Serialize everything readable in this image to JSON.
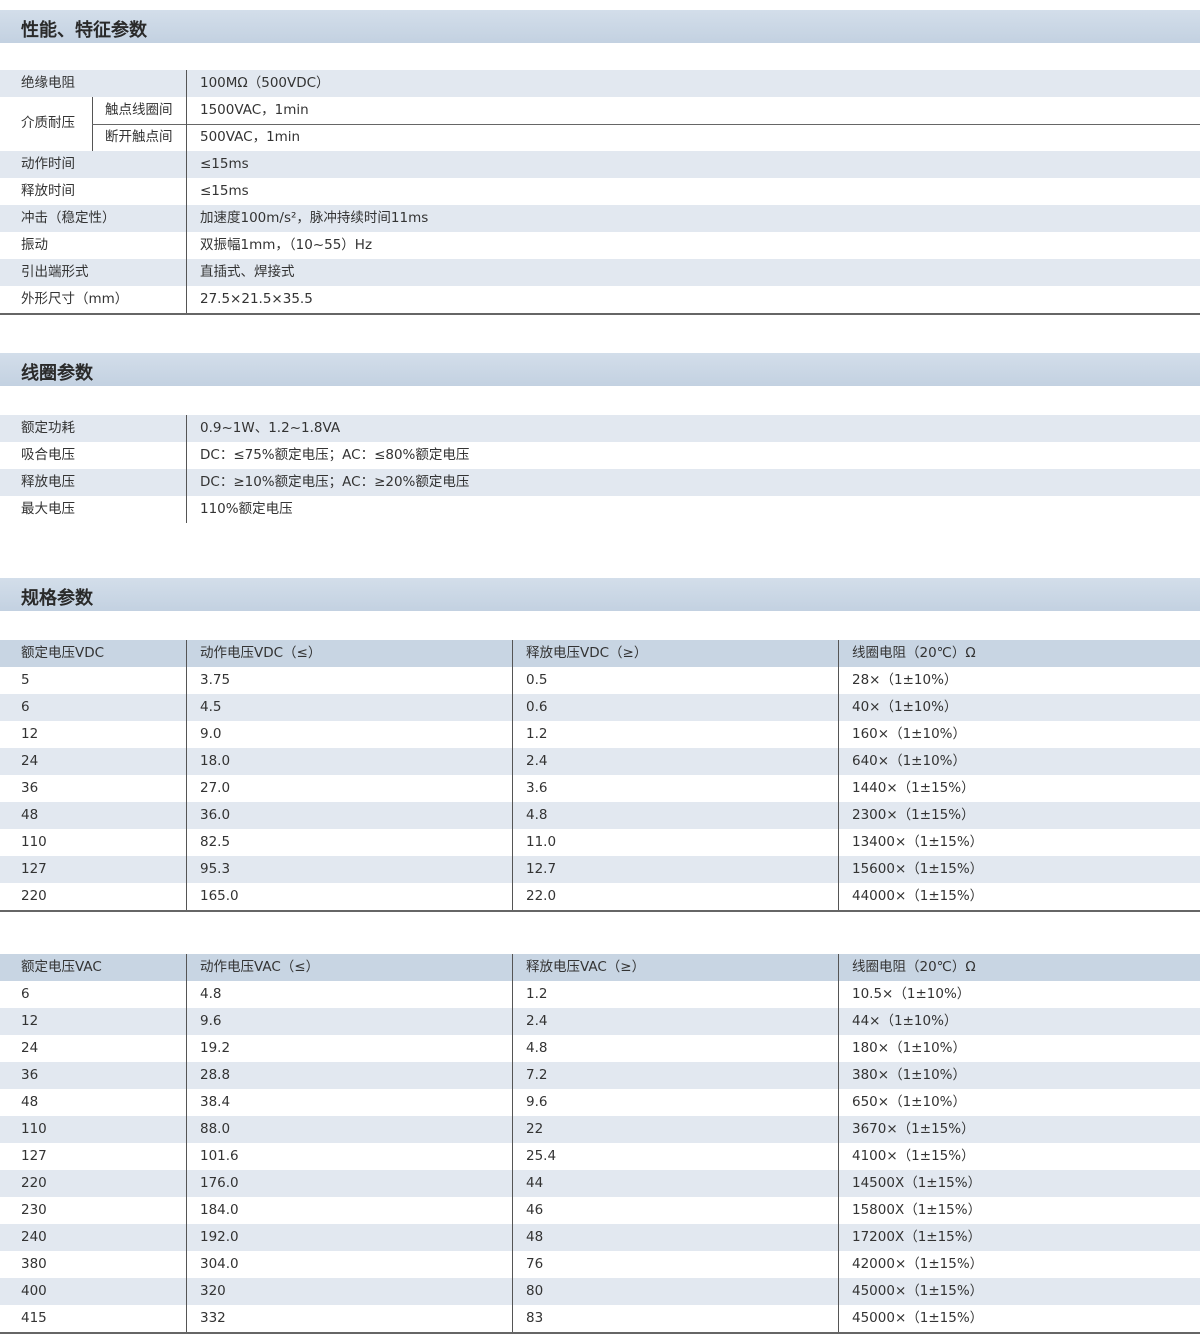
{
  "sections": {
    "performance": {
      "title": "性能、特征参数",
      "insulation": {
        "label": "绝缘电阻",
        "value": "100MΩ（500VDC）"
      },
      "dielectric": {
        "label": "介质耐压",
        "sub1": "触点线圈间",
        "val1": "1500VAC，1min",
        "sub2": "断开触点间",
        "val2": "500VAC，1min"
      },
      "rows": [
        {
          "label": "动作时间",
          "value": "≤15ms"
        },
        {
          "label": "释放时间",
          "value": "≤15ms"
        },
        {
          "label": "冲击（稳定性）",
          "value": "加速度100m/s²，脉冲持续时间11ms"
        },
        {
          "label": "振动",
          "value": "双振幅1mm，（10~55）Hz"
        },
        {
          "label": "引出端形式",
          "value": "直插式、焊接式"
        },
        {
          "label": "外形尺寸（mm）",
          "value": "27.5×21.5×35.5"
        }
      ]
    },
    "coil": {
      "title": "线圈参数",
      "rows": [
        {
          "label": "额定功耗",
          "value": "0.9~1W、1.2~1.8VA"
        },
        {
          "label": "吸合电压",
          "value": "DC：≤75%额定电压；AC：≤80%额定电压"
        },
        {
          "label": "释放电压",
          "value": "DC：≥10%额定电压；AC：≥20%额定电压"
        },
        {
          "label": "最大电压",
          "value": "110%额定电压"
        }
      ]
    },
    "spec": {
      "title": "规格参数",
      "dc": {
        "headers": [
          "额定电压VDC",
          "动作电压VDC（≤）",
          "释放电压VDC（≥）",
          "线圈电阻（20℃）Ω"
        ],
        "rows": [
          [
            "5",
            "3.75",
            "0.5",
            "28×（1±10%）"
          ],
          [
            "6",
            "4.5",
            "0.6",
            "40×（1±10%）"
          ],
          [
            "12",
            "9.0",
            "1.2",
            "160×（1±10%）"
          ],
          [
            "24",
            "18.0",
            "2.4",
            "640×（1±10%）"
          ],
          [
            "36",
            "27.0",
            "3.6",
            "1440×（1±15%）"
          ],
          [
            "48",
            "36.0",
            "4.8",
            "2300×（1±15%）"
          ],
          [
            "110",
            "82.5",
            "11.0",
            "13400×（1±15%）"
          ],
          [
            "127",
            "95.3",
            "12.7",
            "15600×（1±15%）"
          ],
          [
            "220",
            "165.0",
            "22.0",
            "44000×（1±15%）"
          ]
        ]
      },
      "ac": {
        "headers": [
          "额定电压VAC",
          "动作电压VAC（≤）",
          "释放电压VAC（≥）",
          "线圈电阻（20℃）Ω"
        ],
        "rows": [
          [
            "6",
            "4.8",
            "1.2",
            "10.5×（1±10%）"
          ],
          [
            "12",
            "9.6",
            "2.4",
            "44×（1±10%）"
          ],
          [
            "24",
            "19.2",
            "4.8",
            "180×（1±10%）"
          ],
          [
            "36",
            "28.8",
            "7.2",
            "380×（1±10%）"
          ],
          [
            "48",
            "38.4",
            "9.6",
            "650×（1±10%）"
          ],
          [
            "110",
            "88.0",
            "22",
            "3670×（1±15%）"
          ],
          [
            "127",
            "101.6",
            "25.4",
            "4100×（1±15%）"
          ],
          [
            "220",
            "176.0",
            "44",
            "14500X（1±15%）"
          ],
          [
            "230",
            "184.0",
            "46",
            "15800X（1±15%）"
          ],
          [
            "240",
            "192.0",
            "48",
            "17200X（1±15%）"
          ],
          [
            "380",
            "304.0",
            "76",
            "42000×（1±15%）"
          ],
          [
            "400",
            "320",
            "80",
            "45000×（1±15%）"
          ],
          [
            "415",
            "332",
            "83",
            "45000×（1±15%）"
          ]
        ]
      }
    }
  }
}
